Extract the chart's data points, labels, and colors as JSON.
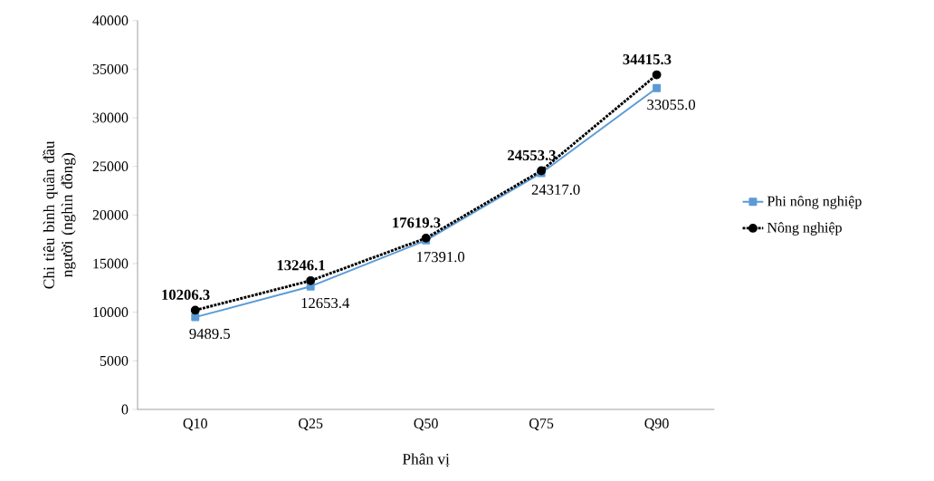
{
  "chart_data": {
    "type": "line",
    "xlabel": "Phân vị",
    "ylabel": "Chi tiêu bình quân đầu người (nghìn đồng)",
    "categories": [
      "Q10",
      "Q25",
      "Q50",
      "Q75",
      "Q90"
    ],
    "series": [
      {
        "name": "Phi nông nghiệp",
        "color": "#5b9bd5",
        "marker": "square",
        "line_style": "solid",
        "values": [
          9489.5,
          12653.4,
          17391.0,
          24317.0,
          33055.0
        ],
        "value_labels": [
          "9489.5",
          "12653.4",
          "17391.0",
          "24317.0",
          "33055.0"
        ]
      },
      {
        "name": "Nông nghiệp",
        "color": "#000000",
        "marker": "circle",
        "line_style": "dotted",
        "values": [
          10206.3,
          13246.1,
          17619.3,
          24553.3,
          34415.3
        ],
        "value_labels": [
          "10206.3",
          "13246.1",
          "17619.3",
          "24553.3",
          "34415.3"
        ]
      }
    ],
    "ylim": [
      0,
      40000
    ],
    "yticks": [
      0,
      5000,
      10000,
      15000,
      20000,
      25000,
      30000,
      35000,
      40000
    ],
    "grid": false,
    "legend": "right"
  }
}
